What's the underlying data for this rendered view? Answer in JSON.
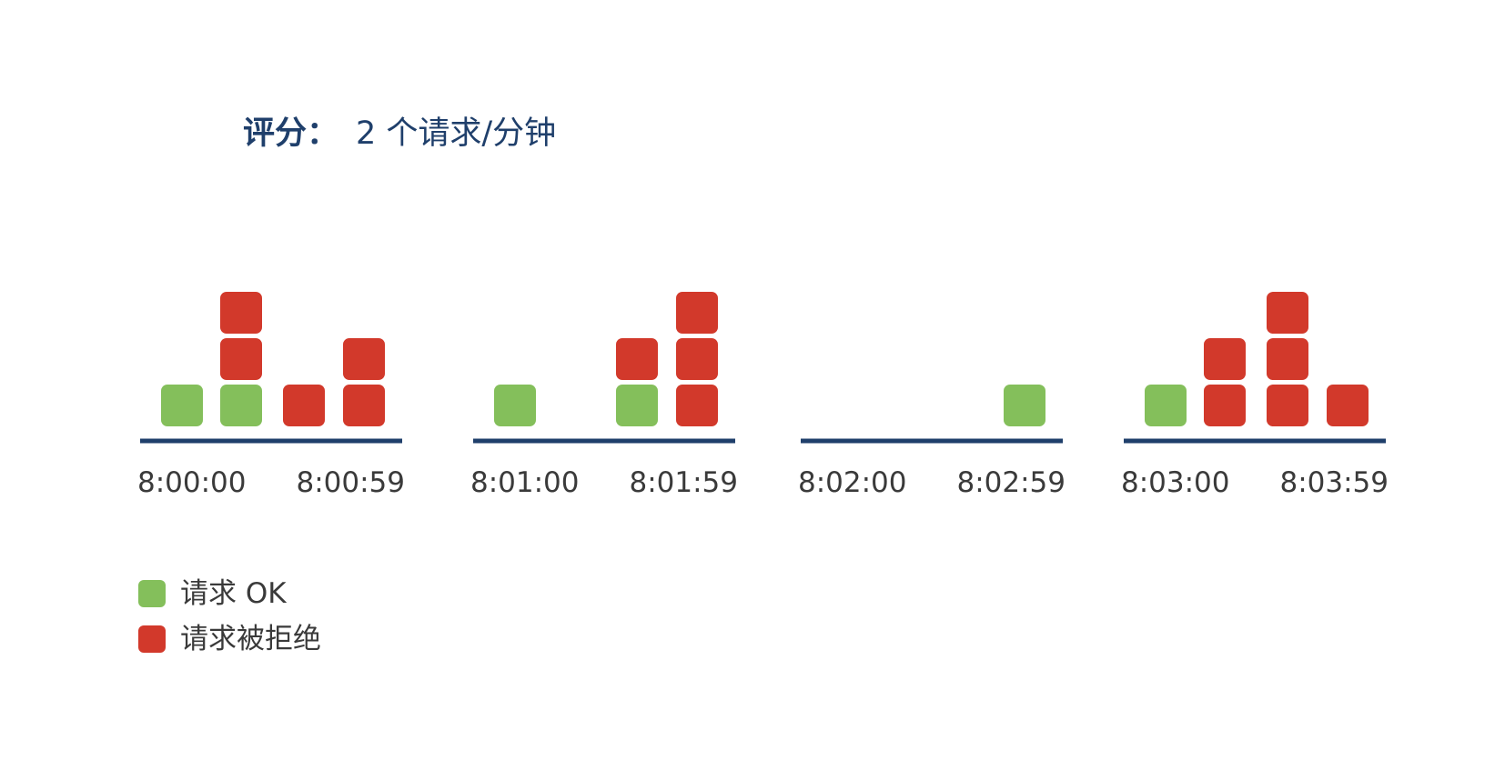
{
  "title": {
    "label": "评分：",
    "value": "2 个请求/分钟"
  },
  "colors": {
    "ok": "#84bf5b",
    "rejected": "#d2392b",
    "axis": "#1f3f6b",
    "title": "#1f3f6b",
    "text": "#3a3a3a"
  },
  "legend": {
    "ok_label": "请求 OK",
    "rejected_label": "请求被拒绝"
  },
  "chart_data": {
    "type": "stacked-blocks",
    "windows": [
      {
        "start_label": "8:00:00",
        "end_label": "8:00:59",
        "columns": [
          [
            "ok"
          ],
          [
            "ok",
            "rejected",
            "rejected"
          ],
          [
            "rejected"
          ],
          [
            "rejected",
            "rejected"
          ]
        ]
      },
      {
        "start_label": "8:01:00",
        "end_label": "8:01:59",
        "columns": [
          [
            "ok"
          ],
          [],
          [
            "ok",
            "rejected"
          ],
          [
            "rejected",
            "rejected",
            "rejected"
          ]
        ]
      },
      {
        "start_label": "8:02:00",
        "end_label": "8:02:59",
        "columns": [
          [],
          [],
          [],
          [
            "ok"
          ]
        ]
      },
      {
        "start_label": "8:03:00",
        "end_label": "8:03:59",
        "columns": [
          [
            "ok"
          ],
          [
            "rejected",
            "rejected"
          ],
          [
            "rejected",
            "rejected",
            "rejected"
          ],
          [
            "rejected"
          ]
        ]
      }
    ]
  }
}
